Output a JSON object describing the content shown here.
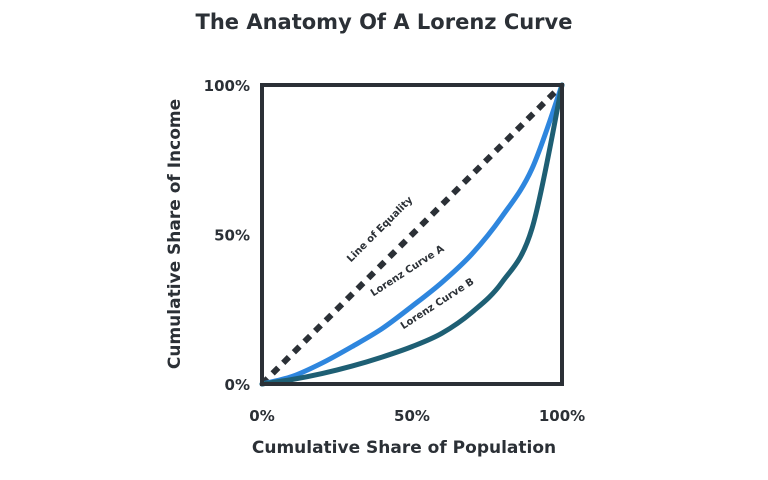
{
  "chart_data": {
    "type": "line",
    "title": "The Anatomy Of A Lorenz Curve",
    "xlabel": "Cumulative Share of Population",
    "ylabel": "Cumulative Share of Income",
    "xlim": [
      0,
      100
    ],
    "ylim": [
      0,
      100
    ],
    "x_ticks": [
      "0%",
      "50%",
      "100%"
    ],
    "y_ticks": [
      "0%",
      "50%",
      "100%"
    ],
    "grid": false,
    "series": [
      {
        "name": "Line of Equality",
        "style": "dashed",
        "color": "#2b3036",
        "x": [
          0,
          100
        ],
        "y": [
          0,
          100
        ]
      },
      {
        "name": "Lorenz Curve A",
        "style": "solid",
        "color": "#2e86de",
        "x": [
          0,
          10,
          20,
          30,
          40,
          50,
          60,
          70,
          80,
          90,
          100
        ],
        "y": [
          0,
          2.5,
          7,
          12.5,
          18.5,
          26,
          34,
          43.5,
          56,
          72,
          100
        ]
      },
      {
        "name": "Lorenz Curve B",
        "style": "solid",
        "color": "#1e5f74",
        "x": [
          0,
          10,
          20,
          30,
          40,
          50,
          60,
          70,
          80,
          90,
          100
        ],
        "y": [
          0,
          1.5,
          3.5,
          6,
          9,
          12.5,
          17,
          24,
          34,
          52,
          100
        ]
      }
    ]
  }
}
